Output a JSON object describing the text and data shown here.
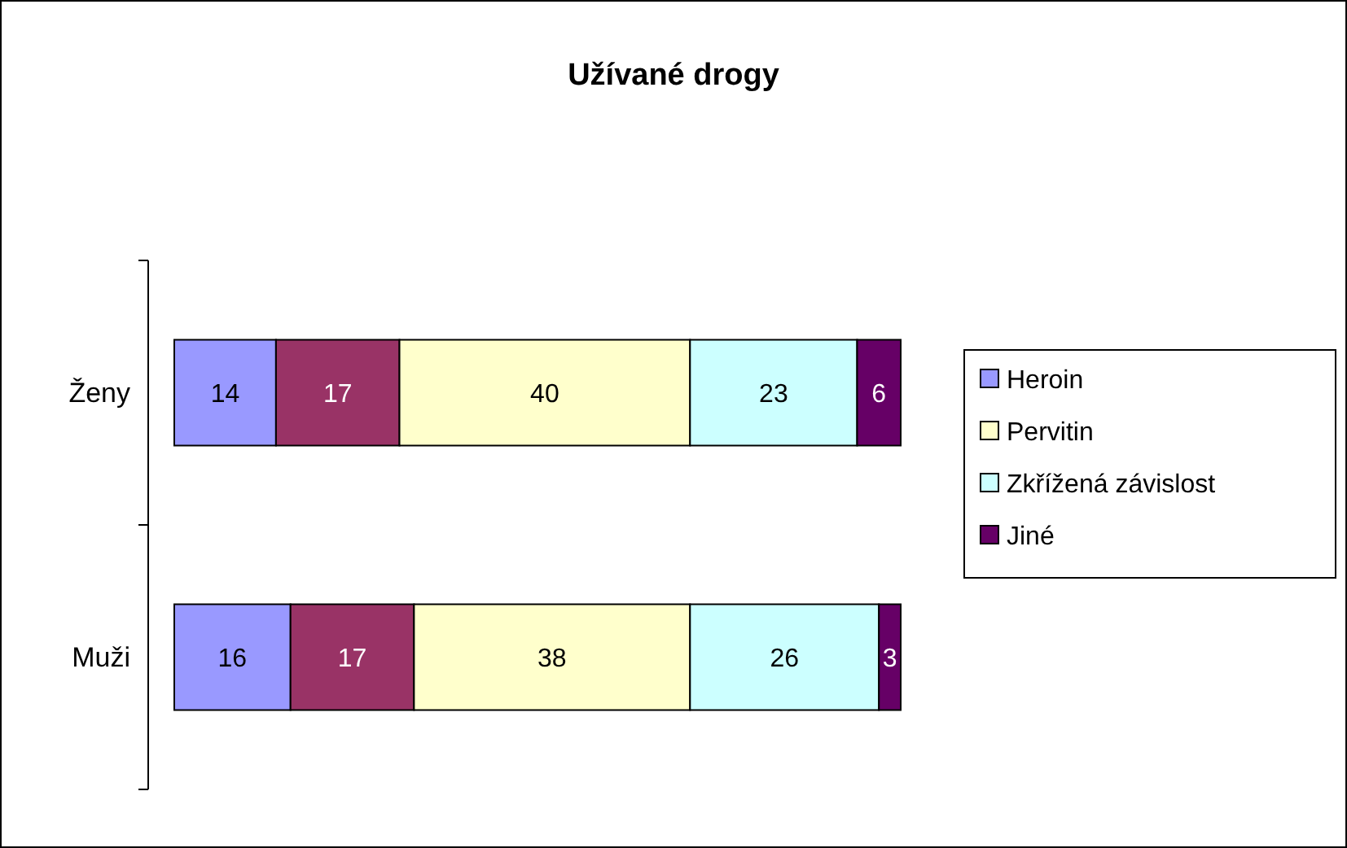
{
  "chart_data": {
    "type": "bar",
    "title": "Užívané drogy",
    "orientation": "horizontal",
    "stacked": true,
    "data_labels": true,
    "legend": "right",
    "categories": [
      "Ženy",
      "Muži"
    ],
    "series": [
      {
        "name": "Heroin",
        "color": "#9999ff",
        "values": [
          14,
          16
        ]
      },
      {
        "color": "#993366",
        "values": [
          17,
          17
        ]
      },
      {
        "name": "Pervitin",
        "color": "#ffffcc",
        "values": [
          40,
          38
        ]
      },
      {
        "name": "Zkřížená závislost",
        "color": "#ccffff",
        "values": [
          23,
          26
        ]
      },
      {
        "name": "Jiné",
        "color": "#660066",
        "values": [
          6,
          3
        ]
      }
    ]
  }
}
